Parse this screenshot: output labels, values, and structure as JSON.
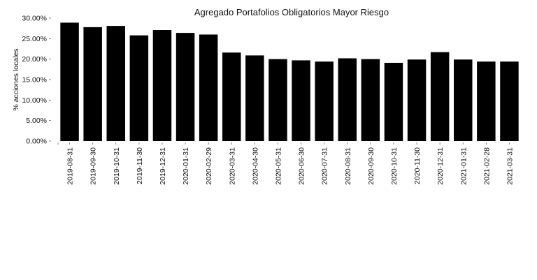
{
  "chart_data": {
    "type": "bar",
    "title": "Agregado Portafolios Obligatorios Mayor Riesgo",
    "xlabel": "",
    "ylabel": "% acciones locales",
    "ylim": [
      0,
      30
    ],
    "yticks": [
      "0.00%",
      "5.00%",
      "10.00%",
      "15.00%",
      "20.00%",
      "25.00%",
      "30.00%"
    ],
    "grid": false,
    "bar_color": "#000000",
    "categories": [
      "2019-08-31",
      "2019-09-30",
      "2019-10-31",
      "2019-11-30",
      "2019-12-31",
      "2020-01-31",
      "2020-02-29",
      "2020-03-31",
      "2020-04-30",
      "2020-05-31",
      "2020-06-30",
      "2020-07-31",
      "2020-08-31",
      "2020-09-30",
      "2020-10-31",
      "2020-11-30",
      "2020-12-31",
      "2021-01-31",
      "2021-02-28",
      "2021-03-31"
    ],
    "values": [
      28.9,
      27.8,
      28.1,
      25.8,
      27.1,
      26.4,
      26.0,
      21.6,
      20.9,
      20.0,
      19.7,
      19.4,
      20.2,
      20.0,
      19.1,
      19.9,
      21.7,
      19.9,
      19.4,
      19.4
    ]
  }
}
